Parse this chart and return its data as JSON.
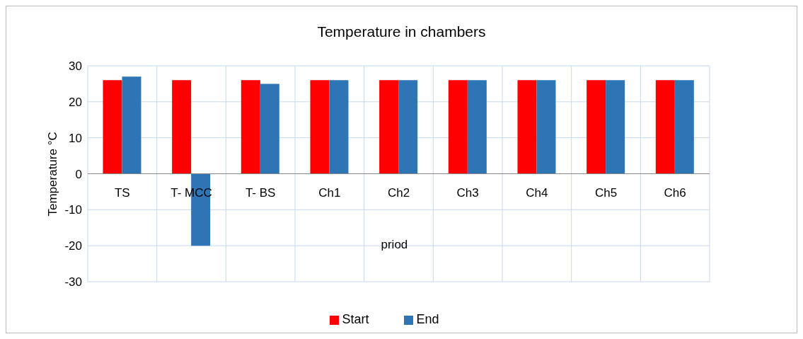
{
  "chart_data": {
    "type": "bar",
    "title": "Temperature in chambers",
    "xlabel": "priod",
    "ylabel": "Temperature °C",
    "categories": [
      "TS",
      "T- MCC",
      "T- BS",
      "Ch1",
      "Ch2",
      "Ch3",
      "Ch4",
      "Ch5",
      "Ch6"
    ],
    "series": [
      {
        "name": "Start",
        "color": "#ff0000",
        "values": [
          26,
          26,
          26,
          26,
          26,
          26,
          26,
          26,
          26
        ]
      },
      {
        "name": "End",
        "color": "#2e75b6",
        "values": [
          27,
          -20,
          25,
          26,
          26,
          26,
          26,
          26,
          26
        ]
      }
    ],
    "ylim": [
      -30,
      30
    ],
    "yticks": [
      -30,
      -20,
      -10,
      0,
      10,
      20,
      30
    ],
    "grid": true,
    "legend": "bottom"
  }
}
